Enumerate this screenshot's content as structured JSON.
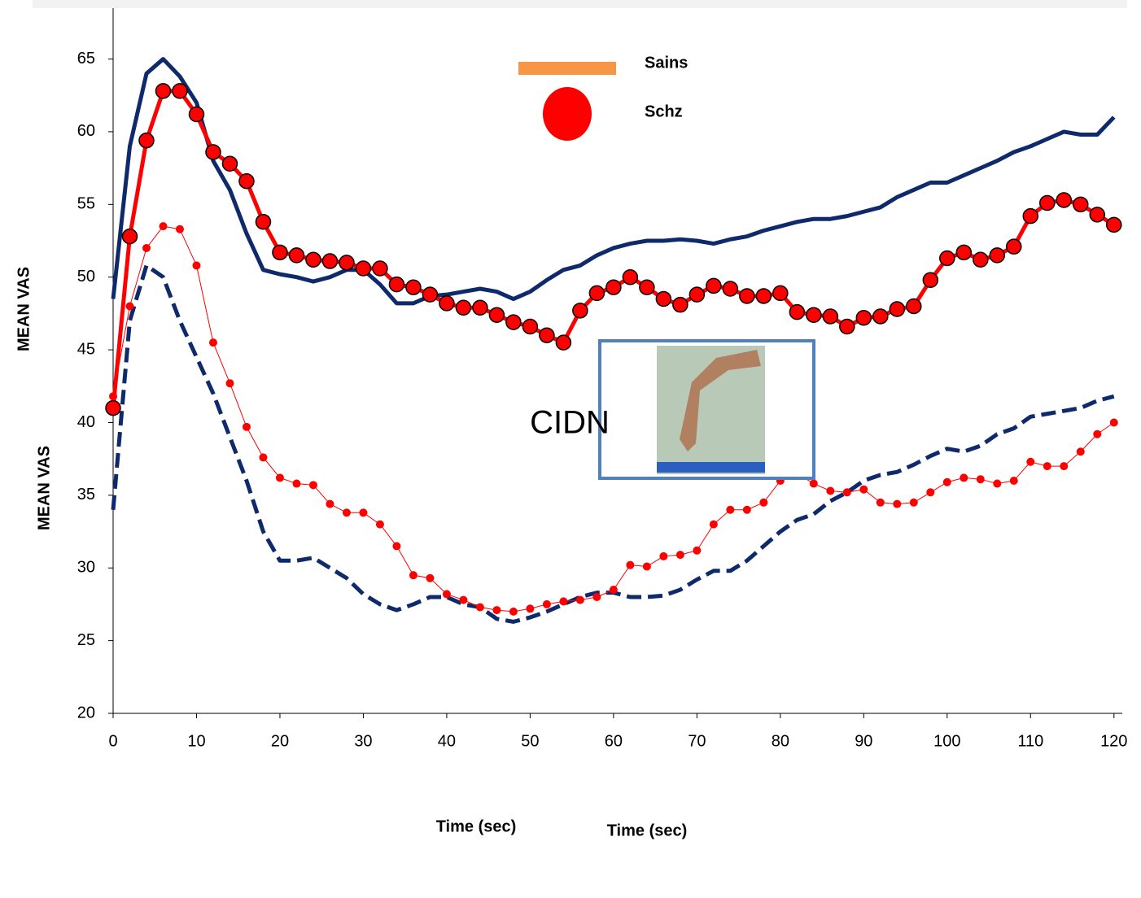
{
  "chart_data": {
    "type": "line",
    "ylabels": [
      "MEAN VAS",
      "MEAN VAS"
    ],
    "xlabels": [
      "Time (sec)",
      "Time (sec)"
    ],
    "annotation": "CIDN",
    "legend": [
      {
        "name": "Sains",
        "color": "#f79646",
        "marker": "bar"
      },
      {
        "name": "Schz",
        "color": "#ff0000",
        "marker": "circle"
      }
    ],
    "x": [
      0,
      2,
      4,
      6,
      8,
      10,
      12,
      14,
      16,
      18,
      20,
      22,
      24,
      26,
      28,
      30,
      32,
      34,
      36,
      38,
      40,
      42,
      44,
      46,
      48,
      50,
      52,
      54,
      56,
      58,
      60,
      62,
      64,
      66,
      68,
      70,
      72,
      74,
      76,
      78,
      80,
      82,
      84,
      86,
      88,
      90,
      92,
      94,
      96,
      98,
      100,
      102,
      104,
      106,
      108,
      110,
      112,
      114,
      116,
      118,
      120
    ],
    "series": [
      {
        "color": "#0f2a6b",
        "width": 5,
        "dash": false,
        "marker": "none",
        "values": [
          48.5,
          59,
          64,
          65,
          63.8,
          62,
          58,
          56,
          53,
          50.5,
          50.2,
          50,
          49.7,
          50,
          50.5,
          50.5,
          49.5,
          48.2,
          48.2,
          48.7,
          48.8,
          49,
          49.2,
          49,
          48.5,
          49,
          49.8,
          50.5,
          50.8,
          51.5,
          52,
          52.3,
          52.5,
          52.5,
          52.6,
          52.5,
          52.3,
          52.6,
          52.8,
          53.2,
          53.5,
          53.8,
          54,
          54,
          54.2,
          54.5,
          54.8,
          55.5,
          56,
          56.5,
          56.5,
          57,
          57.5,
          58,
          58.6,
          59,
          59.5,
          60,
          59.8,
          59.8,
          61
        ]
      },
      {
        "color": "#ff0000",
        "width": 5,
        "dash": false,
        "marker": "big",
        "values": [
          41,
          52.8,
          59.4,
          62.8,
          62.8,
          61.2,
          58.6,
          57.8,
          56.6,
          53.8,
          51.7,
          51.5,
          51.2,
          51.1,
          51,
          50.6,
          50.6,
          49.5,
          49.3,
          48.8,
          48.2,
          47.9,
          47.9,
          47.4,
          46.9,
          46.6,
          46,
          45.5,
          47.7,
          48.9,
          49.3,
          50,
          49.3,
          48.5,
          48.1,
          48.8,
          49.4,
          49.2,
          48.7,
          48.7,
          48.9,
          47.6,
          47.4,
          47.3,
          46.6,
          47.2,
          47.3,
          47.8,
          48,
          49.8,
          51.3,
          51.7,
          51.2,
          51.5,
          52.1,
          54.2,
          55.1,
          55.3,
          55,
          54.3,
          53.6
        ]
      },
      {
        "color": "#0f2a6b",
        "width": 5,
        "dash": true,
        "marker": "none",
        "values": [
          34,
          47,
          50.8,
          50,
          47,
          44.5,
          42,
          39,
          36,
          32.5,
          30.5,
          30.5,
          30.7,
          30,
          29.3,
          28.2,
          27.5,
          27.1,
          27.5,
          28,
          28,
          27.5,
          27.3,
          26.5,
          26.3,
          26.6,
          27,
          27.5,
          28,
          28.3,
          28.3,
          28,
          28,
          28.1,
          28.5,
          29.2,
          29.8,
          29.8,
          30.5,
          31.5,
          32.5,
          33.3,
          33.7,
          34.6,
          35.2,
          36,
          36.4,
          36.6,
          37.1,
          37.7,
          38.2,
          38,
          38.4,
          39.2,
          39.6,
          40.4,
          40.6,
          40.8,
          41,
          41.5,
          41.8
        ]
      },
      {
        "color": "#ff0000",
        "width": 1,
        "dash": false,
        "marker": "small",
        "values": [
          41.8,
          48,
          52,
          53.5,
          53.3,
          50.8,
          45.5,
          42.7,
          39.7,
          37.6,
          36.2,
          35.8,
          35.7,
          34.4,
          33.8,
          33.8,
          33,
          31.5,
          29.5,
          29.3,
          28.2,
          27.8,
          27.3,
          27.1,
          27,
          27.2,
          27.5,
          27.7,
          27.8,
          28,
          28.5,
          30.2,
          30.1,
          30.8,
          30.9,
          31.2,
          33,
          34,
          34,
          34.5,
          36,
          36.5,
          35.8,
          35.3,
          35.2,
          35.4,
          34.5,
          34.4,
          34.5,
          35.2,
          35.9,
          36.2,
          36.1,
          35.8,
          36,
          37.3,
          37,
          37,
          38,
          39.2,
          40
        ]
      }
    ],
    "xlim": [
      0,
      121
    ],
    "ylim": [
      20,
      68.5
    ],
    "xticks": [
      0,
      10,
      20,
      30,
      40,
      50,
      60,
      70,
      80,
      90,
      100,
      110,
      120
    ],
    "yticks": [
      20,
      25,
      30,
      35,
      40,
      45,
      50,
      55,
      60,
      65
    ]
  }
}
